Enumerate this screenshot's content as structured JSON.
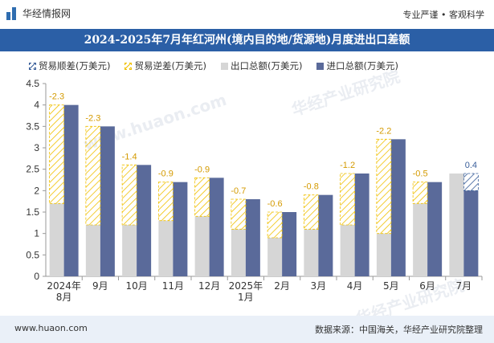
{
  "header": {
    "logo_text": "华经情报网",
    "tagline": "专业严谨 • 客观科学"
  },
  "title_bar": {
    "title": "2024-2025年7月年红河州(境内目的地/货源地)月度进出口差额"
  },
  "footer": {
    "site": "www.huaon.com",
    "source": "数据来源：中国海关，华经产业研究院整理"
  },
  "watermarks": [
    "华经产业研究院",
    "www.huaon.com",
    "华经产业研究院"
  ],
  "colors": {
    "header_bar": "#2b5fa6",
    "export": "#d6d6d6",
    "import": "#5a6a9a",
    "surplus": "#f0c000",
    "deficit": "#3a5f9a",
    "footer": "#eaf0f8"
  },
  "chart_data": {
    "type": "bar",
    "title": "2024-2025年7月年红河州(境内目的地/货源地)月度进出口差额",
    "categories": [
      "2024年\n8月",
      "9月",
      "10月",
      "11月",
      "12月",
      "2025年\n1月",
      "2月",
      "3月",
      "4月",
      "5月",
      "6月",
      "7月"
    ],
    "series": [
      {
        "name": "出口总额(万美元)",
        "values": [
          1.7,
          1.2,
          1.2,
          1.3,
          1.4,
          1.1,
          0.9,
          1.1,
          1.2,
          1.0,
          1.7,
          2.4
        ]
      },
      {
        "name": "进口总额(万美元)",
        "values": [
          4.0,
          3.5,
          2.6,
          2.2,
          2.3,
          1.8,
          1.5,
          1.9,
          2.4,
          3.2,
          2.2,
          2.0
        ]
      }
    ],
    "balance_series": [
      {
        "name": "贸易顺差(万美元)",
        "values": [
          null,
          null,
          null,
          null,
          null,
          null,
          null,
          null,
          null,
          null,
          null,
          0.4
        ]
      },
      {
        "name": "贸易逆差(万美元)",
        "values": [
          -2.3,
          -2.3,
          -1.4,
          -0.9,
          -0.9,
          -0.7,
          -0.6,
          -0.8,
          -1.2,
          -2.2,
          -0.5,
          null
        ]
      }
    ],
    "balance_labels": [
      "-2.3",
      "-2.3",
      "-1.4",
      "-0.9",
      "-0.9",
      "-0.7",
      "-0.6",
      "-0.8",
      "-1.2",
      "-2.2",
      "-0.5",
      "0.4"
    ],
    "y_ticks": [
      "0",
      "0.5",
      "1",
      "1.5",
      "2",
      "2.5",
      "3",
      "3.5",
      "4",
      "4.5"
    ],
    "ylim": [
      0,
      4.5
    ],
    "grid": false,
    "legend_position": "top"
  }
}
